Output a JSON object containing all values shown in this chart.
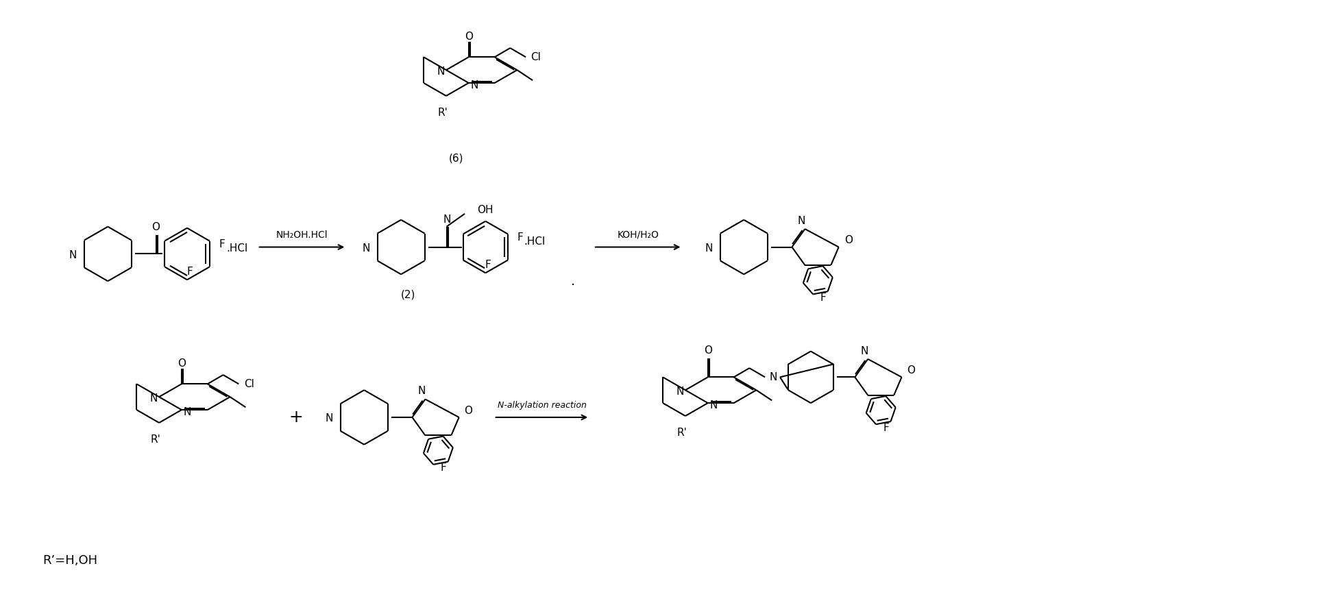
{
  "bg_color": "#ffffff",
  "fig_width": 19.4,
  "fig_height": 8.96,
  "lw": 1.5,
  "structures": {
    "compound6_label": "(6)",
    "compound2_label": "(2)",
    "reagent1": "NH₂OH.HCl",
    "reagent2": "KOH/H₂O",
    "reagent3": "N-alkylation reaction",
    "r_prime_label": "R’=H,OH"
  }
}
